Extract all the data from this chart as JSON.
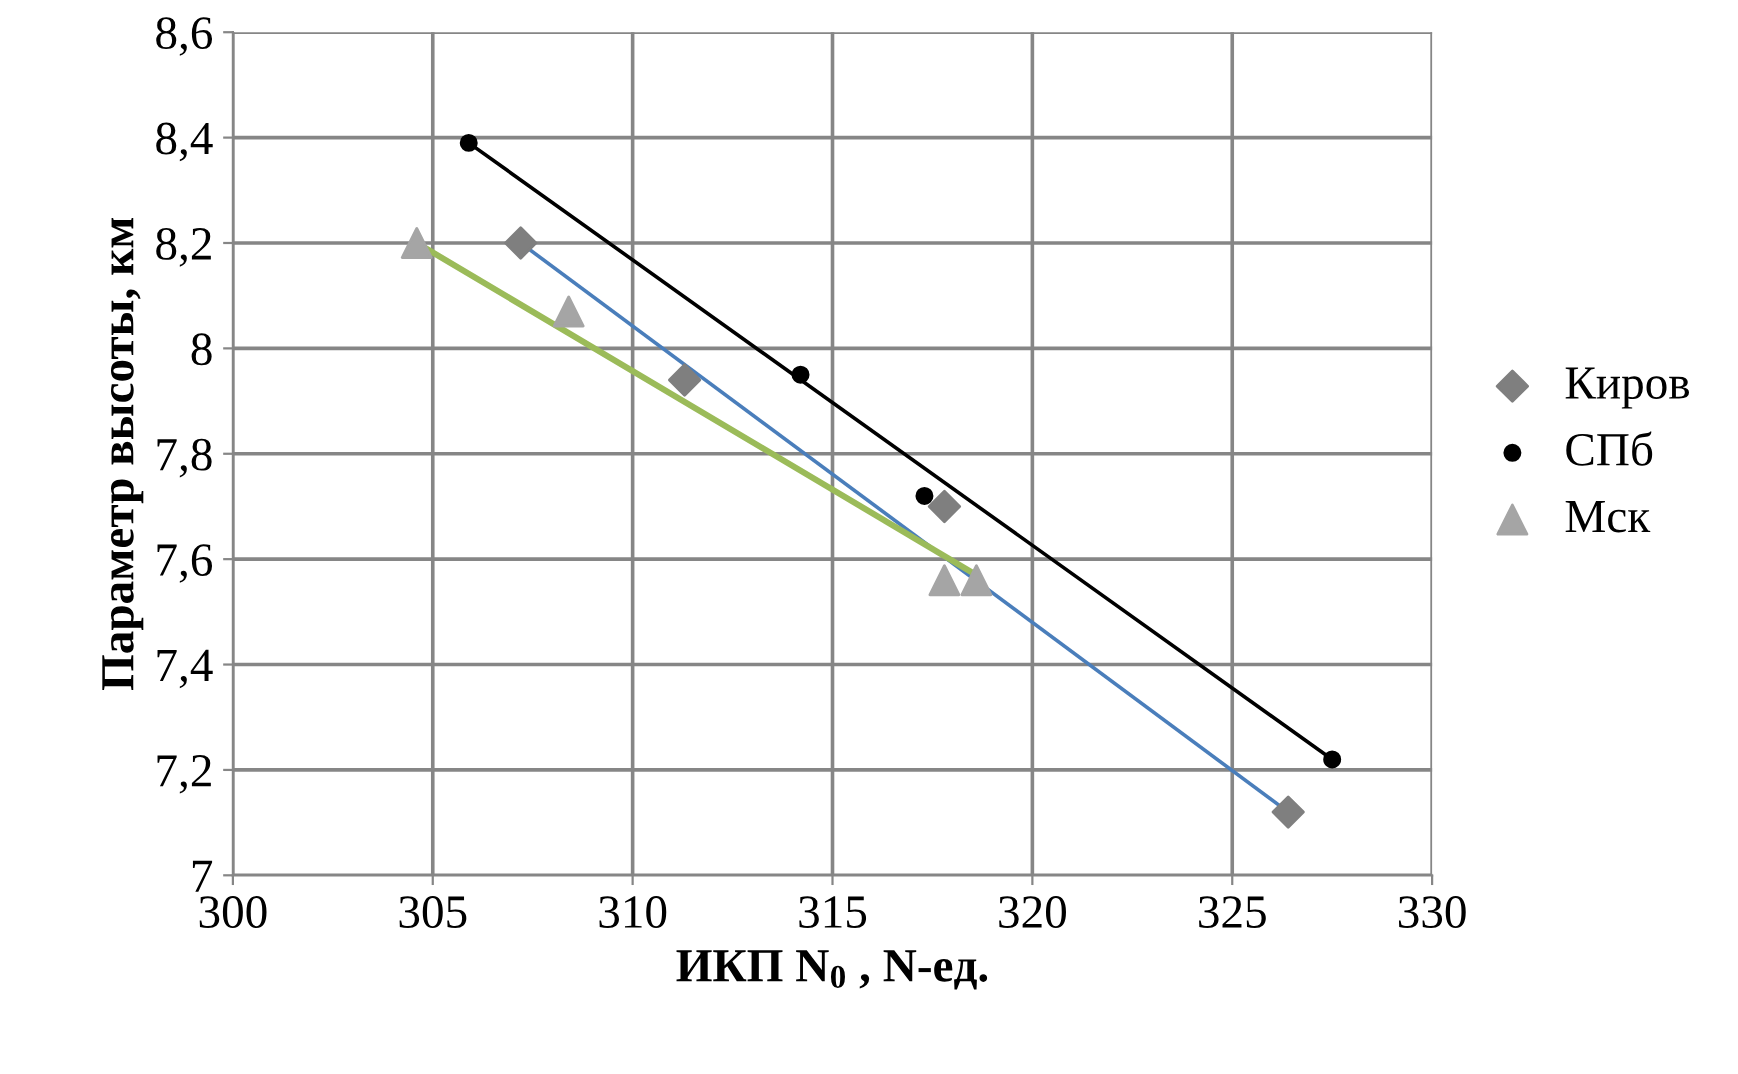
{
  "chart_data": {
    "type": "scatter",
    "xlabel": "ИКП N$_{0}$ , N-ед.",
    "ylabel": "Параметр высоты, км",
    "xlim": [
      300,
      330
    ],
    "xticks": [
      300,
      305,
      310,
      315,
      320,
      325,
      330
    ],
    "ylim": [
      7,
      8.6
    ],
    "yticks": [
      7,
      {
        "value": 7.2,
        "label": "7,2"
      },
      {
        "value": 7.4,
        "label": "7,4"
      },
      {
        "value": 7.6,
        "label": "7,6"
      },
      {
        "value": 7.8,
        "label": "7,8"
      },
      8,
      {
        "value": 8.2,
        "label": "8,2"
      },
      {
        "value": 8.4,
        "label": "8,4"
      },
      {
        "value": 8.6,
        "label": "8,6"
      }
    ],
    "grid": true,
    "legend": "right",
    "series": [
      {
        "name": "Киров",
        "marker": "diamond",
        "color": "#7f7f7f",
        "x": [
          307.2,
          311.3,
          317.8,
          326.4
        ],
        "values": [
          8.2,
          7.94,
          7.7,
          7.12
        ]
      },
      {
        "name": "СПб",
        "marker": "circle",
        "color": "#000000",
        "x": [
          305.9,
          314.2,
          317.3,
          327.5
        ],
        "values": [
          8.39,
          7.95,
          7.72,
          7.22
        ]
      },
      {
        "name": "Мск",
        "marker": "triangle",
        "color": "#a5a5a5",
        "x": [
          304.6,
          308.4,
          317.8,
          318.6
        ],
        "values": [
          8.2,
          8.07,
          7.56,
          7.56
        ]
      },
      {
        "type": "line",
        "marker": "none",
        "color": "#4a7ebb",
        "x": [
          307.2,
          326.4
        ],
        "values": [
          8.2,
          7.12
        ]
      },
      {
        "type": "line",
        "marker": "none",
        "color": "#000000",
        "x": [
          305.9,
          327.5
        ],
        "values": [
          8.39,
          7.22
        ]
      },
      {
        "type": "line",
        "marker": "none",
        "color": "#9bbb59",
        "x": [
          304.6,
          318.6
        ],
        "values": [
          8.2,
          7.57
        ]
      }
    ]
  }
}
